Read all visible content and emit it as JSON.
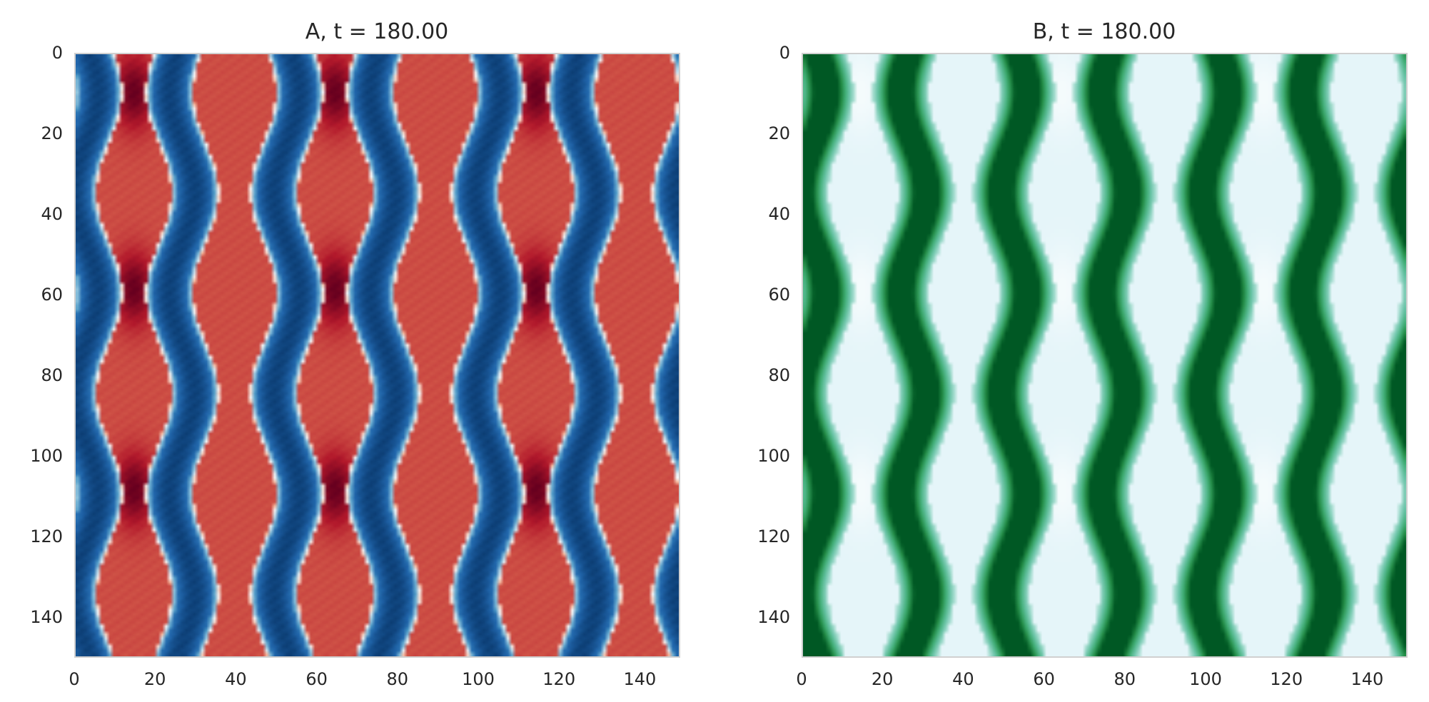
{
  "chart_data": [
    {
      "type": "heatmap",
      "title": "A, t = 180.00",
      "colormap": "RdBu_r",
      "grid": false,
      "xlim": [
        0,
        150
      ],
      "ylim": [
        150,
        0
      ],
      "xticks": [
        "0",
        "20",
        "40",
        "60",
        "80",
        "100",
        "120",
        "140"
      ],
      "yticks": [
        "0",
        "20",
        "40",
        "60",
        "80",
        "100",
        "120",
        "140"
      ],
      "pattern": {
        "description_values": "vertical stripes with wavy boundaries",
        "stripe_period_x": 50,
        "wave_period_y": 50,
        "red_peaks_x": [
          14,
          64,
          114
        ],
        "red_peaks_y": [
          9,
          58,
          108
        ],
        "secondary_red_x": [
          39,
          89,
          139
        ],
        "blue_stripes_x": [
          2,
          26,
          52,
          76,
          102,
          126
        ]
      }
    },
    {
      "type": "heatmap",
      "title": "B, t = 180.00",
      "colormap": "BuGn",
      "grid": false,
      "xlim": [
        0,
        150
      ],
      "ylim": [
        150,
        0
      ],
      "xticks": [
        "0",
        "20",
        "40",
        "60",
        "80",
        "100",
        "120",
        "140"
      ],
      "yticks": [
        "0",
        "20",
        "40",
        "60",
        "80",
        "100",
        "120",
        "140"
      ],
      "pattern": {
        "stripe_period_x": 25,
        "wave_period_y": 50,
        "dark_green_stripes_x": [
          2,
          27,
          52,
          77,
          102,
          127
        ],
        "lightest_x": [
          14,
          64,
          114
        ]
      }
    }
  ]
}
